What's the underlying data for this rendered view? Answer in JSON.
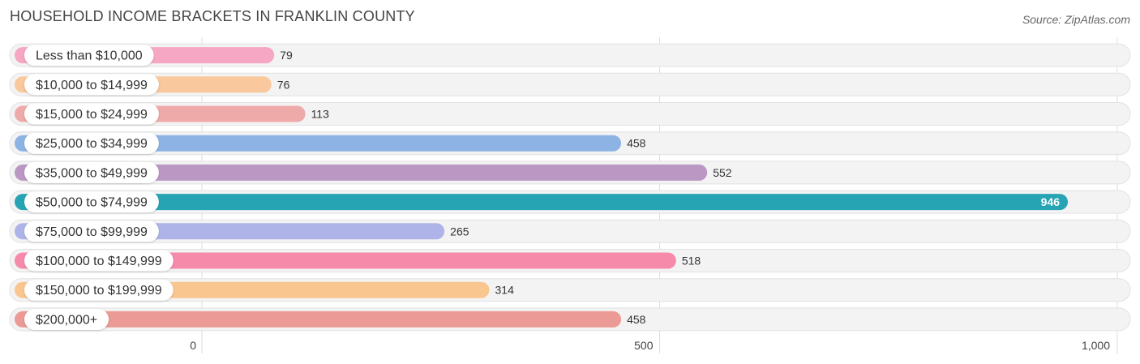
{
  "chart_data": {
    "type": "bar",
    "orientation": "horizontal",
    "title": "HOUSEHOLD INCOME BRACKETS IN FRANKLIN COUNTY",
    "source": "Source: ZipAtlas.com",
    "categories": [
      "Less than $10,000",
      "$10,000 to $14,999",
      "$15,000 to $24,999",
      "$25,000 to $34,999",
      "$35,000 to $49,999",
      "$50,000 to $74,999",
      "$75,000 to $99,999",
      "$100,000 to $149,999",
      "$150,000 to $199,999",
      "$200,000+"
    ],
    "values": [
      79,
      76,
      113,
      458,
      552,
      946,
      265,
      518,
      314,
      458
    ],
    "value_labels": [
      "79",
      "76",
      "113",
      "458",
      "552",
      "946",
      "265",
      "518",
      "314",
      "458"
    ],
    "colors": [
      "#f6a7c3",
      "#f9c89c",
      "#eeaaa9",
      "#8db3e5",
      "#bb97c4",
      "#27a4b4",
      "#aeb4e8",
      "#f68aab",
      "#f9c68f",
      "#ec9a95"
    ],
    "xlim": [
      0,
      1000
    ],
    "xticks": [
      0,
      500,
      1000
    ],
    "xtick_labels": [
      "0",
      "500",
      "1,000"
    ],
    "grid": true
  }
}
